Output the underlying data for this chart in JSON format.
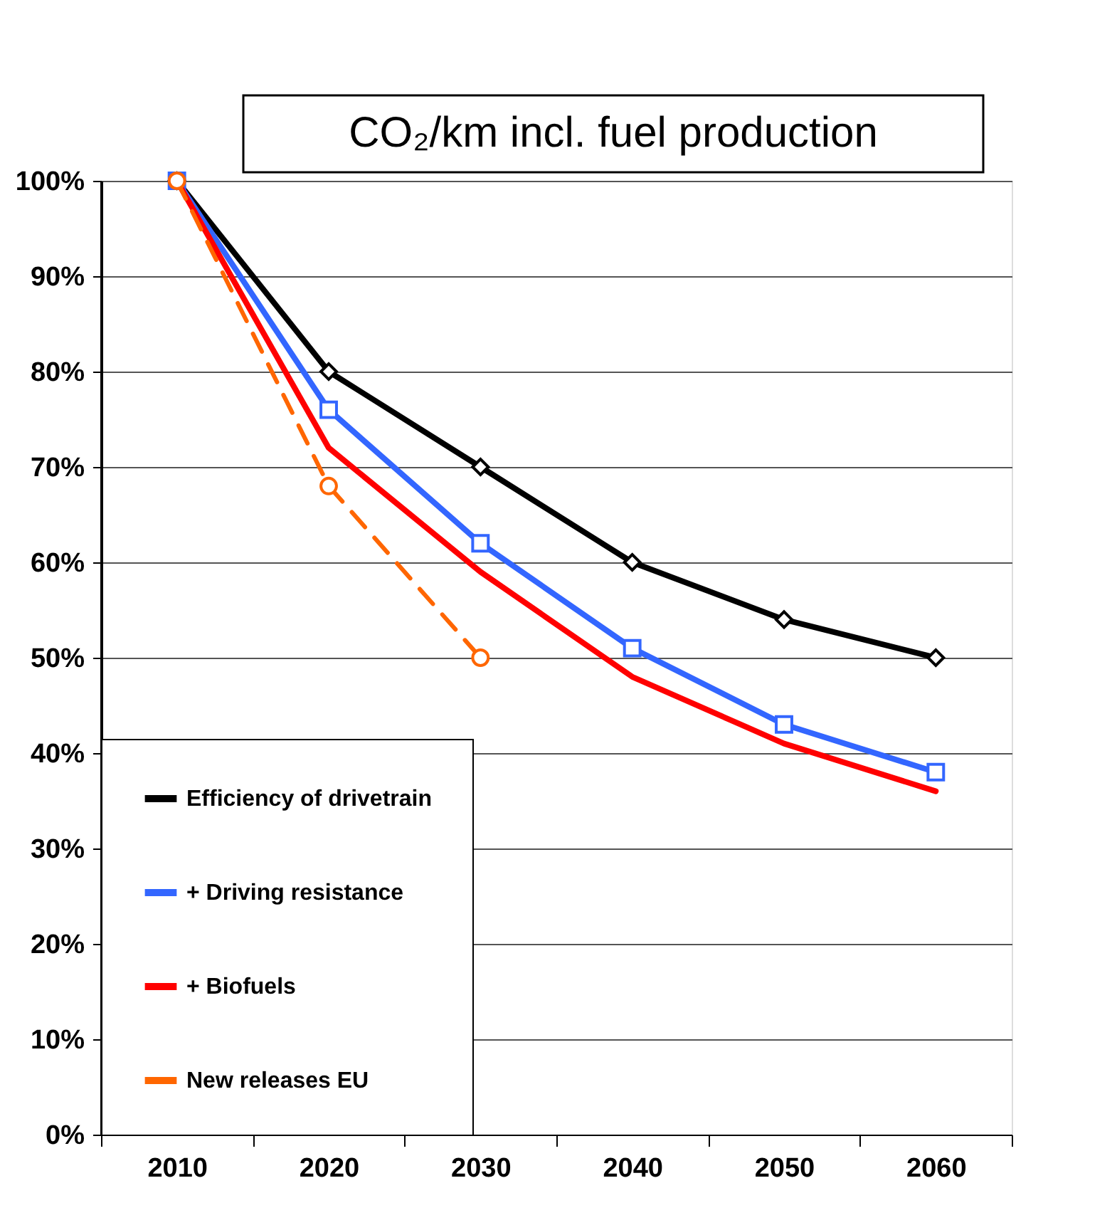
{
  "chart_data": {
    "type": "line",
    "title": "CO₂/km incl. fuel production",
    "categories": [
      "2010",
      "2020",
      "2030",
      "2040",
      "2050",
      "2060"
    ],
    "series": [
      {
        "name": "Efficiency of drivetrain",
        "color": "#000000",
        "marker": "diamond",
        "line_style": "solid",
        "values": [
          100,
          80,
          70,
          60,
          54,
          50
        ]
      },
      {
        "name": "+ Driving resistance",
        "color": "#3366ff",
        "marker": "square",
        "line_style": "solid",
        "values": [
          100,
          76,
          62,
          51,
          43,
          38
        ]
      },
      {
        "name": "+ Biofuels",
        "color": "#ff0000",
        "marker": "none",
        "line_style": "solid",
        "values": [
          100,
          72,
          59,
          48,
          41,
          36
        ]
      },
      {
        "name": "New releases EU",
        "color": "#ff6600",
        "marker": "circle",
        "line_style": "dashed",
        "values": [
          100,
          68,
          50,
          null,
          null,
          null
        ]
      }
    ],
    "ylim": [
      0,
      100
    ],
    "yticks": [
      {
        "value": 0,
        "label": "0%"
      },
      {
        "value": 10,
        "label": "10%"
      },
      {
        "value": 20,
        "label": "20%"
      },
      {
        "value": 30,
        "label": "30%"
      },
      {
        "value": 40,
        "label": "40%"
      },
      {
        "value": 50,
        "label": "50%"
      },
      {
        "value": 60,
        "label": "60%"
      },
      {
        "value": 70,
        "label": "70%"
      },
      {
        "value": 80,
        "label": "80%"
      },
      {
        "value": 90,
        "label": "90%"
      },
      {
        "value": 100,
        "label": "100%"
      }
    ],
    "grid": "y",
    "legend": "bottom left"
  }
}
